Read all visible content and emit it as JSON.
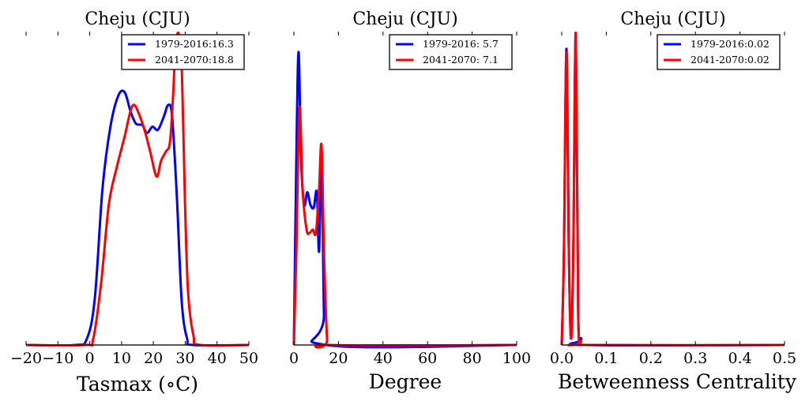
{
  "chart_data": [
    {
      "type": "line",
      "title": "Cheju (CJU)",
      "xlabel": "Tasmax ($^\\circ$C)",
      "xlabel_display": "Tasmax (∘C)",
      "ylabel": "",
      "xlim": [
        -20,
        50
      ],
      "xticks": [
        -20,
        -10,
        0,
        10,
        20,
        30,
        40,
        50
      ],
      "xtick_labels": [
        "−20",
        "−10",
        "0",
        "10",
        "20",
        "30",
        "40",
        "50"
      ],
      "legend_position": "top-right",
      "y_units": "relative density (max=1)",
      "series": [
        {
          "name": "1979-2016:16.3",
          "color": "#0000ff",
          "x": [
            -20,
            -4.6,
            -0.9,
            1.6,
            4,
            6.5,
            9,
            11,
            12.8,
            14.5,
            16.5,
            18,
            19.7,
            21.4,
            23.2,
            24.7,
            25.9,
            27.4,
            28.9,
            30.6,
            32.6,
            50
          ],
          "y": [
            0,
            0,
            0.02,
            0.15,
            0.5,
            0.7,
            0.8,
            0.81,
            0.75,
            0.71,
            0.705,
            0.68,
            0.7,
            0.69,
            0.73,
            0.77,
            0.73,
            0.47,
            0.14,
            0.02,
            0,
            0
          ]
        },
        {
          "name": "2041-2070:18.8",
          "color": "#ff0000",
          "x": [
            -20,
            -1.4,
            1.1,
            3.6,
            6,
            8.5,
            11,
            12.8,
            14,
            15.5,
            17.2,
            19,
            21,
            22.4,
            23.9,
            25.2,
            26.2,
            26.9,
            27.9,
            28.9,
            29.9,
            30.9,
            32.6,
            34.6,
            50
          ],
          "y": [
            0,
            0,
            0.02,
            0.2,
            0.45,
            0.57,
            0.67,
            0.75,
            0.77,
            0.74,
            0.69,
            0.62,
            0.54,
            0.59,
            0.62,
            0.65,
            0.8,
            0.95,
            1.0,
            0.9,
            0.47,
            0.17,
            0.03,
            0,
            0
          ]
        }
      ]
    },
    {
      "type": "line",
      "title": "Cheju (CJU)",
      "xlabel": "Degree",
      "xlabel_display": "Degree",
      "ylabel": "",
      "xlim": [
        0,
        100
      ],
      "xticks": [
        0,
        20,
        40,
        60,
        80,
        100
      ],
      "xtick_labels": [
        "0",
        "20",
        "40",
        "60",
        "80",
        "100"
      ],
      "legend_position": "top-right",
      "y_units": "relative density (max=1)",
      "series": [
        {
          "name": "1979-2016: 5.7",
          "color": "#0000ff",
          "x": [
            0,
            1.1,
            2.1,
            3.2,
            4.6,
            6,
            7.4,
            8.9,
            10.3,
            11.3,
            12.4,
            13.5,
            14.5,
            100
          ],
          "y": [
            0,
            0.6,
            0.94,
            0.6,
            0.45,
            0.49,
            0.45,
            0.44,
            0.49,
            0.3,
            0.6,
            0.1,
            0,
            0
          ]
        },
        {
          "name": "2041-2070: 7.1",
          "color": "#ff0000",
          "x": [
            0,
            1.1,
            2.5,
            3.9,
            5.7,
            7.1,
            8.5,
            9.9,
            11.3,
            12.4,
            13.5,
            14.9,
            16.3,
            100
          ],
          "y": [
            0,
            0.3,
            0.76,
            0.5,
            0.37,
            0.36,
            0.37,
            0.36,
            0.5,
            0.64,
            0.3,
            0.02,
            0,
            0
          ]
        }
      ]
    },
    {
      "type": "line",
      "title": "Cheju (CJU)",
      "xlabel": "Betweenness Centrality",
      "xlabel_display": "Betweenness Centrality",
      "ylabel": "",
      "xlim": [
        0,
        0.5
      ],
      "xticks": [
        0,
        0.1,
        0.2,
        0.3,
        0.4,
        0.5
      ],
      "xtick_labels": [
        "0.0",
        "0.1",
        "0.2",
        "0.3",
        "0.4",
        "0.5"
      ],
      "legend_position": "top-right",
      "y_units": "relative density (max=1)",
      "series": [
        {
          "name": "1979-2016:0.02",
          "color": "#0000ff",
          "x": [
            0,
            0.005,
            0.0106,
            0.016,
            0.021,
            0.026,
            0.0316,
            0.037,
            0.044,
            0.055,
            0.5
          ],
          "y": [
            0,
            0.3,
            0.95,
            0.3,
            0.02,
            0.3,
            1.0,
            0.1,
            0.02,
            0,
            0
          ]
        },
        {
          "name": "2041-2070:0.02",
          "color": "#ff0000",
          "x": [
            0,
            0.005,
            0.0106,
            0.016,
            0.021,
            0.026,
            0.0316,
            0.037,
            0.043,
            0.05,
            0.5
          ],
          "y": [
            0,
            0.3,
            0.94,
            0.3,
            0.02,
            0.3,
            1.0,
            0.1,
            0.01,
            0,
            0
          ]
        }
      ]
    }
  ]
}
